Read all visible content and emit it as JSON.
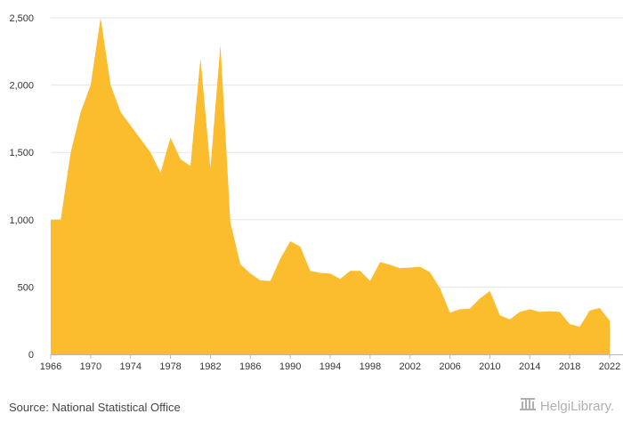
{
  "chart_data": {
    "type": "area",
    "x": [
      1966,
      1967,
      1968,
      1969,
      1970,
      1971,
      1972,
      1973,
      1974,
      1975,
      1976,
      1977,
      1978,
      1979,
      1980,
      1981,
      1982,
      1983,
      1984,
      1985,
      1986,
      1987,
      1988,
      1989,
      1990,
      1991,
      1992,
      1993,
      1994,
      1995,
      1996,
      1997,
      1998,
      1999,
      2000,
      2001,
      2002,
      2003,
      2004,
      2005,
      2006,
      2007,
      2008,
      2009,
      2010,
      2011,
      2012,
      2013,
      2014,
      2015,
      2016,
      2017,
      2018,
      2019,
      2020,
      2021,
      2022
    ],
    "series": [
      {
        "values": [
          1000,
          1000,
          1500,
          1800,
          2000,
          2500,
          2000,
          1800,
          1700,
          1600,
          1500,
          1350,
          1610,
          1450,
          1400,
          2200,
          1380,
          2300,
          980,
          670,
          600,
          550,
          545,
          710,
          840,
          800,
          620,
          605,
          600,
          560,
          620,
          620,
          545,
          685,
          665,
          640,
          645,
          650,
          610,
          490,
          310,
          335,
          340,
          415,
          470,
          290,
          260,
          315,
          335,
          315,
          320,
          315,
          225,
          205,
          325,
          345,
          250
        ],
        "color": "#fbbd2e"
      }
    ],
    "x_ticks": [
      "1966",
      "1970",
      "1974",
      "1978",
      "1982",
      "1986",
      "1990",
      "1994",
      "1998",
      "2002",
      "2006",
      "2010",
      "2014",
      "2018",
      "2022"
    ],
    "y_ticks": [
      "0",
      "500",
      "1,000",
      "1,500",
      "2,000",
      "2,500"
    ],
    "y_tick_values": [
      0,
      500,
      1000,
      1500,
      2000,
      2500
    ],
    "xlim": [
      1966,
      2022
    ],
    "ylim": [
      0,
      2500
    ],
    "grid": true,
    "legend": false
  },
  "footer": {
    "source": "Source: National Statistical Office",
    "brand": "HelgiLibrary.",
    "brand_icon": "library-building-icon"
  }
}
